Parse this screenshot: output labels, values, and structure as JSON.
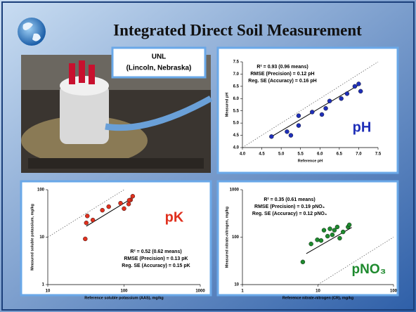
{
  "title": "Integrated Direct Soil Measurement",
  "photo_caption": [
    "UNL",
    "(Lincoln, Nebraska)"
  ],
  "chart_data": [
    {
      "type": "scatter",
      "label": "pH",
      "color": "#1f2fb8",
      "x_label": "Reference pH",
      "y_label": "Measured pH",
      "annotations": [
        "R² = 0.93 (0.96 means)",
        "RMSE (Precision) = 0.12 pH",
        "Reg. SE (Accuracy) = 0.16 pH"
      ],
      "x": [
        4.75,
        5.15,
        5.25,
        5.45,
        5.45,
        5.8,
        6.05,
        6.15,
        6.25,
        6.55,
        6.7,
        6.9,
        7.0,
        7.05
      ],
      "values": [
        4.45,
        4.65,
        4.5,
        5.3,
        4.9,
        5.45,
        5.35,
        5.6,
        5.9,
        6.0,
        6.2,
        6.5,
        6.6,
        6.3
      ],
      "trend": {
        "x": [
          4.7,
          7.05
        ],
        "y": [
          4.4,
          6.6
        ]
      },
      "xlim": [
        4,
        7.5
      ],
      "ylim": [
        4,
        7.5
      ],
      "xticks": [
        {
          "value": 4,
          "label": "4.0"
        },
        4.5,
        {
          "value": 5,
          "label": "5.0"
        },
        5.5,
        {
          "value": 6,
          "label": "6.0"
        },
        6.5,
        {
          "value": 7,
          "label": "7.0"
        },
        7.5
      ],
      "yticks": [
        {
          "value": 4,
          "label": "4.0"
        },
        4.5,
        {
          "value": 5,
          "label": "5.0"
        },
        5.5,
        {
          "value": 6,
          "label": "6.0"
        },
        6.5,
        {
          "value": 7,
          "label": "7.0"
        },
        7.5
      ]
    },
    {
      "type": "scatter",
      "label": "pK",
      "color": "#e0301e",
      "xscale": "log",
      "yscale": "log",
      "x_label": "Reference soluble potassium (AAS), mg/kg",
      "y_label": "Measured soluble potassium, mg/kg",
      "annotations": [
        "R² = 0.52 (0.62 means)",
        "RMSE (Precision) = 0.13 pK",
        "Reg. SE (Accuracy) = 0.15 pK"
      ],
      "x": [
        32,
        39,
        33,
        52,
        63,
        90,
        100,
        115,
        122,
        130,
        117,
        31
      ],
      "values": [
        20,
        23,
        28,
        37,
        44,
        52,
        40,
        50,
        61,
        73,
        60,
        9.2
      ],
      "trend": {
        "x": [
          32,
          135
        ],
        "y": [
          17,
          70
        ]
      },
      "xlim": [
        10,
        1000
      ],
      "ylim": [
        1,
        100
      ],
      "xticks": [
        10,
        100,
        1000
      ],
      "yticks": [
        1,
        10,
        100
      ]
    },
    {
      "type": "scatter",
      "label": "pNO₃",
      "color": "#1e8a2e",
      "xscale": "log",
      "yscale": "log",
      "x_label": "Reference nitrate-nitrogen (CR), mg/kg",
      "y_label": "Measured nitrate-nitrogen, mg/kg",
      "annotations": [
        "R² = 0.35 (0.61 means)",
        "RMSE (Precision) = 0.19 pNO₃",
        "Reg. SE (Accuracy) = 0.12 pNO₃"
      ],
      "x": [
        6.3,
        8.1,
        9.8,
        11,
        12,
        13.4,
        14.4,
        15.5,
        16.5,
        18,
        19.4,
        21.5,
        25,
        26
      ],
      "values": [
        30,
        72,
        88,
        85,
        140,
        105,
        150,
        112,
        140,
        164,
        95,
        129,
        164,
        182
      ],
      "trend": {
        "x": [
          7,
          28
        ],
        "y": [
          45,
          160
        ]
      },
      "xlim": [
        1,
        100
      ],
      "ylim": [
        10,
        1000
      ],
      "xticks": [
        1,
        10,
        100
      ],
      "yticks": [
        10,
        100,
        1000
      ]
    }
  ]
}
